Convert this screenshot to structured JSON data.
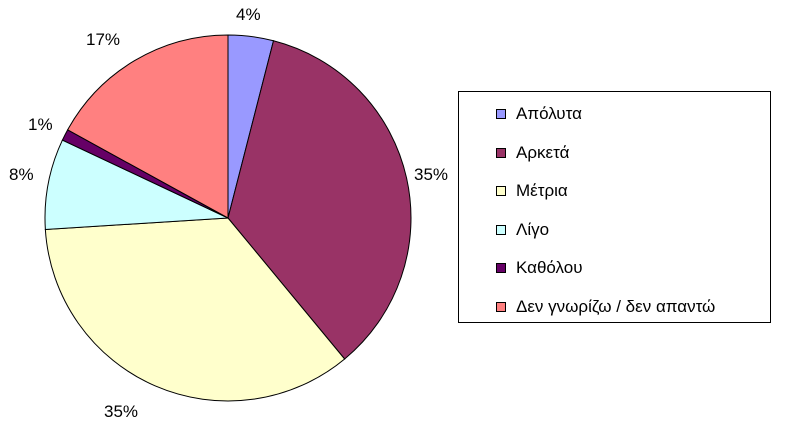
{
  "chart_data": {
    "type": "pie",
    "title": "",
    "legend_position": "right",
    "slices": [
      {
        "name": "Απόλυτα",
        "value": 4,
        "label": "4%",
        "color": "#9999ff"
      },
      {
        "name": "Αρκετά",
        "value": 35,
        "label": "35%",
        "color": "#993366"
      },
      {
        "name": "Μέτρια",
        "value": 35,
        "label": "35%",
        "color": "#ffffcc"
      },
      {
        "name": "Λίγο",
        "value": 8,
        "label": "8%",
        "color": "#ccffff"
      },
      {
        "name": "Καθόλου",
        "value": 1,
        "label": "1%",
        "color": "#660066"
      },
      {
        "name": "Δεν γνωρίζω / δεν απαντώ",
        "value": 17,
        "label": "17%",
        "color": "#ff8080"
      }
    ]
  }
}
